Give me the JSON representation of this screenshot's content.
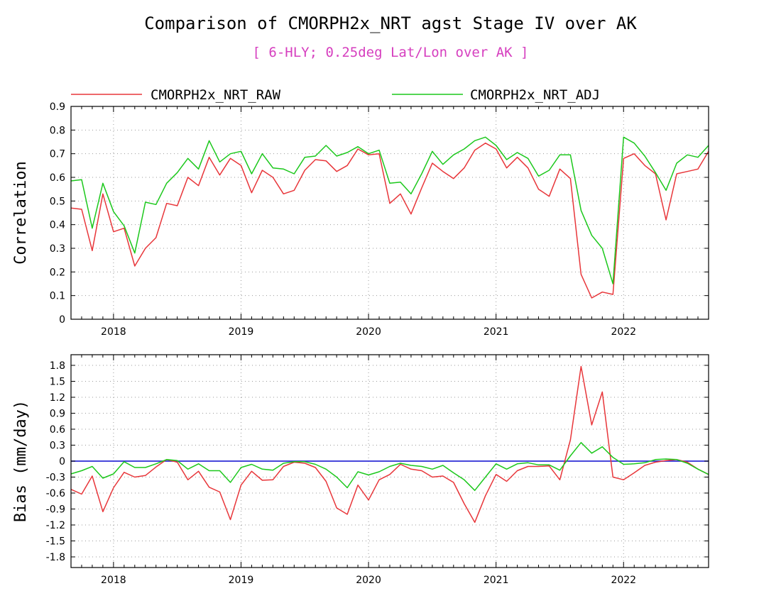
{
  "title": "Comparison of CMORPH2x_NRT agst Stage IV over AK",
  "subtitle": "[ 6-HLY; 0.25deg Lat/Lon over AK ]",
  "colors": {
    "raw": "#e8363a",
    "adj": "#1cc81c",
    "zero_line": "#2b2bd6",
    "subtitle": "#d63fbf"
  },
  "chart_data": [
    {
      "type": "line",
      "ylabel": "Correlation",
      "ylim": [
        0,
        0.9
      ],
      "yticks": [
        0,
        0.1,
        0.2,
        0.3,
        0.4,
        0.5,
        0.6,
        0.7,
        0.8,
        0.9
      ],
      "ytick_labels": [
        "0",
        "0.1",
        "0.2",
        "0.3",
        "0.4",
        "0.5",
        "0.6",
        "0.7",
        "0.8",
        "0.9"
      ],
      "xlim": [
        "2017-09",
        "2022-09"
      ],
      "xtick_labels": [
        "2018",
        "2019",
        "2020",
        "2021",
        "2022"
      ],
      "grid": true,
      "legend_position": "top",
      "x": [
        "2017-09",
        "2017-10",
        "2017-11",
        "2017-12",
        "2018-01",
        "2018-02",
        "2018-03",
        "2018-04",
        "2018-05",
        "2018-06",
        "2018-07",
        "2018-08",
        "2018-09",
        "2018-10",
        "2018-11",
        "2018-12",
        "2019-01",
        "2019-02",
        "2019-03",
        "2019-04",
        "2019-05",
        "2019-06",
        "2019-07",
        "2019-08",
        "2019-09",
        "2019-10",
        "2019-11",
        "2019-12",
        "2020-01",
        "2020-02",
        "2020-03",
        "2020-04",
        "2020-05",
        "2020-06",
        "2020-07",
        "2020-08",
        "2020-09",
        "2020-10",
        "2020-11",
        "2020-12",
        "2021-01",
        "2021-02",
        "2021-03",
        "2021-04",
        "2021-05",
        "2021-06",
        "2021-07",
        "2021-08",
        "2021-09",
        "2021-10",
        "2021-11",
        "2021-12",
        "2022-01",
        "2022-02",
        "2022-03",
        "2022-04",
        "2022-05",
        "2022-06",
        "2022-07",
        "2022-08",
        "2022-09"
      ],
      "series": [
        {
          "name": "CMORPH2x_NRT_RAW",
          "color": "#e8363a",
          "values": [
            0.47,
            0.465,
            0.29,
            0.53,
            0.37,
            0.385,
            0.225,
            0.3,
            0.345,
            0.49,
            0.48,
            0.6,
            0.565,
            0.685,
            0.61,
            0.68,
            0.65,
            0.535,
            0.63,
            0.6,
            0.53,
            0.545,
            0.63,
            0.675,
            0.67,
            0.625,
            0.65,
            0.72,
            0.695,
            0.7,
            0.49,
            0.53,
            0.445,
            0.555,
            0.66,
            0.625,
            0.595,
            0.64,
            0.715,
            0.745,
            0.72,
            0.64,
            0.685,
            0.64,
            0.55,
            0.52,
            0.635,
            0.595,
            0.19,
            0.09,
            0.115,
            0.105,
            0.68,
            0.7,
            0.65,
            0.615,
            0.42,
            0.615,
            0.625,
            0.635,
            0.71
          ]
        },
        {
          "name": "CMORPH2x_NRT_ADJ",
          "color": "#1cc81c",
          "values": [
            0.585,
            0.59,
            0.385,
            0.575,
            0.455,
            0.395,
            0.28,
            0.495,
            0.485,
            0.575,
            0.62,
            0.68,
            0.635,
            0.755,
            0.665,
            0.7,
            0.71,
            0.615,
            0.7,
            0.64,
            0.635,
            0.615,
            0.685,
            0.69,
            0.735,
            0.69,
            0.705,
            0.73,
            0.7,
            0.715,
            0.575,
            0.58,
            0.53,
            0.615,
            0.71,
            0.655,
            0.695,
            0.72,
            0.755,
            0.77,
            0.735,
            0.675,
            0.705,
            0.68,
            0.605,
            0.63,
            0.695,
            0.695,
            0.46,
            0.355,
            0.3,
            0.15,
            0.77,
            0.745,
            0.69,
            0.62,
            0.545,
            0.66,
            0.695,
            0.685,
            0.735
          ]
        }
      ]
    },
    {
      "type": "line",
      "ylabel": "Bias (mm/day)",
      "ylim": [
        -2.0,
        2.0
      ],
      "yticks": [
        1.8,
        1.5,
        1.2,
        0.9,
        0.6,
        0.3,
        0,
        -0.3,
        -0.6,
        -0.9,
        -1.2,
        -1.5,
        -1.8
      ],
      "ytick_labels": [
        "1.8",
        "1.5",
        "1.2",
        "0.9",
        "0.6",
        "0.3",
        "0",
        "-0.3",
        "-0.6",
        "-0.9",
        "-1.2",
        "-1.5",
        "-1.8"
      ],
      "xlim": [
        "2017-09",
        "2022-09"
      ],
      "xtick_labels": [
        "2018",
        "2019",
        "2020",
        "2021",
        "2022"
      ],
      "grid": true,
      "reference_line": 0,
      "x": [
        "2017-09",
        "2017-10",
        "2017-11",
        "2017-12",
        "2018-01",
        "2018-02",
        "2018-03",
        "2018-04",
        "2018-05",
        "2018-06",
        "2018-07",
        "2018-08",
        "2018-09",
        "2018-10",
        "2018-11",
        "2018-12",
        "2019-01",
        "2019-02",
        "2019-03",
        "2019-04",
        "2019-05",
        "2019-06",
        "2019-07",
        "2019-08",
        "2019-09",
        "2019-10",
        "2019-11",
        "2019-12",
        "2020-01",
        "2020-02",
        "2020-03",
        "2020-04",
        "2020-05",
        "2020-06",
        "2020-07",
        "2020-08",
        "2020-09",
        "2020-10",
        "2020-11",
        "2020-12",
        "2021-01",
        "2021-02",
        "2021-03",
        "2021-04",
        "2021-05",
        "2021-06",
        "2021-07",
        "2021-08",
        "2021-09",
        "2021-10",
        "2021-11",
        "2021-12",
        "2022-01",
        "2022-02",
        "2022-03",
        "2022-04",
        "2022-05",
        "2022-06",
        "2022-07",
        "2022-08",
        "2022-09"
      ],
      "series": [
        {
          "name": "CMORPH2x_NRT_RAW",
          "color": "#e8363a",
          "values": [
            -0.53,
            -0.62,
            -0.28,
            -0.95,
            -0.5,
            -0.21,
            -0.3,
            -0.27,
            -0.11,
            0.03,
            -0.02,
            -0.35,
            -0.19,
            -0.49,
            -0.58,
            -1.1,
            -0.45,
            -0.19,
            -0.36,
            -0.35,
            -0.1,
            -0.02,
            -0.04,
            -0.12,
            -0.38,
            -0.88,
            -1.0,
            -0.45,
            -0.73,
            -0.35,
            -0.25,
            -0.06,
            -0.15,
            -0.18,
            -0.3,
            -0.28,
            -0.4,
            -0.8,
            -1.15,
            -0.65,
            -0.25,
            -0.38,
            -0.18,
            -0.1,
            -0.1,
            -0.09,
            -0.35,
            0.4,
            1.78,
            0.68,
            1.3,
            -0.3,
            -0.35,
            -0.22,
            -0.08,
            -0.02,
            0.01,
            0.03,
            -0.02,
            -0.15,
            -0.25
          ]
        },
        {
          "name": "CMORPH2x_NRT_ADJ",
          "color": "#1cc81c",
          "values": [
            -0.24,
            -0.18,
            -0.1,
            -0.32,
            -0.24,
            -0.01,
            -0.12,
            -0.12,
            -0.05,
            0.03,
            0.01,
            -0.15,
            -0.05,
            -0.18,
            -0.18,
            -0.4,
            -0.12,
            -0.06,
            -0.15,
            -0.17,
            -0.04,
            -0.01,
            -0.01,
            -0.06,
            -0.15,
            -0.3,
            -0.5,
            -0.2,
            -0.26,
            -0.2,
            -0.1,
            -0.04,
            -0.08,
            -0.1,
            -0.15,
            -0.08,
            -0.22,
            -0.35,
            -0.55,
            -0.3,
            -0.05,
            -0.15,
            -0.05,
            -0.03,
            -0.07,
            -0.07,
            -0.17,
            0.1,
            0.35,
            0.15,
            0.27,
            0.07,
            -0.06,
            -0.05,
            -0.03,
            0.03,
            0.04,
            0.03,
            -0.04,
            -0.15,
            -0.25
          ]
        }
      ]
    }
  ]
}
